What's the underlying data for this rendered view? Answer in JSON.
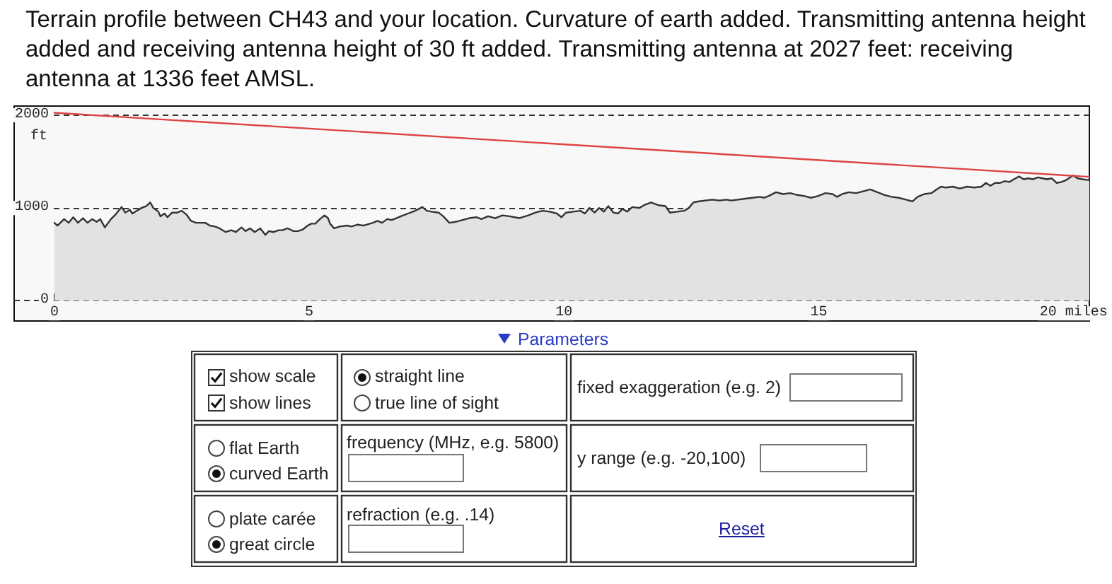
{
  "chart_data": [
    {
      "type": "area",
      "title": "Terrain profile between CH43 and your location. Curvature of earth added. Transmitting antenna height added and receiving antenna height of 30 ft added. Transmitting antenna at 2027 feet: receiving antenna at 1336 feet AMSL.",
      "ylabel": "ft",
      "xlim": [
        -0.79,
        20.31
      ],
      "ylim": [
        -220,
        2100
      ],
      "xticks": [
        0,
        5,
        10,
        15,
        {
          "value": 20,
          "label": "20 miles"
        }
      ],
      "yticks": [
        0,
        1000,
        2000
      ],
      "grid": "y",
      "marker": "none",
      "series": [
        {
          "type": "area",
          "color": "#333333",
          "x": [
            0,
            0.06,
            0.19,
            0.28,
            0.37,
            0.46,
            0.56,
            0.65,
            0.74,
            0.83,
            0.9,
            0.99,
            1.11,
            1.2,
            1.32,
            1.39,
            1.48,
            1.53,
            1.62,
            1.71,
            1.8,
            1.88,
            1.94,
            2.04,
            2.08,
            2.16,
            2.22,
            2.31,
            2.41,
            2.5,
            2.59,
            2.68,
            2.78,
            2.87,
            2.96,
            3.05,
            3.15,
            3.24,
            3.36,
            3.47,
            3.56,
            3.67,
            3.75,
            3.84,
            3.93,
            4.04,
            4.14,
            4.21,
            4.3,
            4.4,
            4.47,
            4.58,
            4.69,
            4.78,
            4.88,
            4.97,
            5.04,
            5.12,
            5.21,
            5.3,
            5.37,
            5.41,
            5.49,
            5.6,
            5.74,
            5.83,
            5.95,
            6.06,
            6.25,
            6.34,
            6.43,
            6.53,
            6.62,
            6.71,
            6.8,
            6.94,
            7.08,
            7.22,
            7.31,
            7.4,
            7.54,
            7.63,
            7.75,
            7.87,
            8.01,
            8.14,
            8.28,
            8.38,
            8.51,
            8.65,
            8.79,
            8.93,
            9.12,
            9.3,
            9.44,
            9.58,
            9.72,
            9.86,
            9.95,
            10.04,
            10.18,
            10.32,
            10.41,
            10.5,
            10.6,
            10.69,
            10.78,
            10.87,
            10.97,
            11.06,
            11.15,
            11.24,
            11.34,
            11.48,
            11.57,
            11.71,
            11.85,
            11.99,
            12.08,
            12.22,
            12.36,
            12.45,
            12.54,
            12.63,
            12.77,
            12.91,
            13.05,
            13.19,
            13.28,
            13.56,
            13.7,
            13.84,
            13.93,
            14.02,
            14.16,
            14.3,
            14.44,
            14.58,
            14.71,
            14.85,
            14.99,
            15.13,
            15.27,
            15.36,
            15.46,
            15.59,
            15.73,
            15.87,
            16.01,
            16.15,
            16.29,
            16.43,
            16.57,
            16.71,
            16.84,
            16.94,
            17.07,
            17.21,
            17.31,
            17.4,
            17.49,
            17.63,
            17.77,
            17.91,
            18.05,
            18.19,
            18.28,
            18.37,
            18.46,
            18.56,
            18.65,
            18.74,
            18.83,
            18.93,
            19.02,
            19.11,
            19.2,
            19.3,
            19.39,
            19.48,
            19.57,
            19.67,
            19.76,
            19.85,
            19.99,
            20.08,
            20.17,
            20.31
          ],
          "values": [
            840,
            810,
            880,
            840,
            900,
            840,
            890,
            840,
            880,
            850,
            880,
            790,
            880,
            930,
            1010,
            950,
            980,
            940,
            970,
            1000,
            1020,
            1060,
            1000,
            960,
            910,
            940,
            900,
            950,
            950,
            970,
            930,
            860,
            840,
            840,
            840,
            810,
            800,
            780,
            740,
            760,
            740,
            790,
            750,
            780,
            740,
            780,
            710,
            750,
            740,
            760,
            760,
            780,
            750,
            750,
            770,
            810,
            830,
            830,
            880,
            920,
            890,
            830,
            780,
            800,
            810,
            800,
            820,
            810,
            840,
            860,
            840,
            880,
            870,
            890,
            910,
            940,
            970,
            1010,
            970,
            960,
            950,
            910,
            840,
            850,
            870,
            890,
            900,
            880,
            910,
            890,
            920,
            910,
            890,
            920,
            950,
            970,
            960,
            940,
            900,
            950,
            960,
            970,
            940,
            1000,
            950,
            1000,
            960,
            1020,
            950,
            940,
            990,
            960,
            1010,
            1000,
            1030,
            1060,
            1030,
            1020,
            950,
            960,
            970,
            1000,
            1060,
            1070,
            1080,
            1090,
            1080,
            1090,
            1080,
            1100,
            1110,
            1120,
            1110,
            1130,
            1170,
            1150,
            1160,
            1140,
            1130,
            1110,
            1130,
            1160,
            1150,
            1120,
            1150,
            1170,
            1160,
            1180,
            1200,
            1170,
            1140,
            1120,
            1110,
            1090,
            1070,
            1120,
            1150,
            1160,
            1200,
            1230,
            1220,
            1230,
            1210,
            1230,
            1220,
            1230,
            1270,
            1240,
            1270,
            1270,
            1290,
            1280,
            1310,
            1340,
            1310,
            1320,
            1310,
            1330,
            1320,
            1310,
            1320,
            1270,
            1280,
            1300,
            1350,
            1320,
            1310,
            1300
          ]
        },
        {
          "type": "line",
          "color": "#dd4444",
          "x": [
            0,
            20.31
          ],
          "values": [
            2027,
            1336
          ]
        }
      ]
    },
    {
      "type": "other",
      "annotations": [
        "Parameters",
        "show scale",
        "show lines",
        "straight line",
        "true line of sight",
        "fixed exaggeration (e.g. 2)",
        "flat Earth",
        "curved Earth",
        "frequency (MHz, e.g. 5800)",
        "y range (e.g. -20,100)",
        "plate carée",
        "great circle",
        "refraction (e.g. .14)",
        "Reset"
      ]
    }
  ]
}
